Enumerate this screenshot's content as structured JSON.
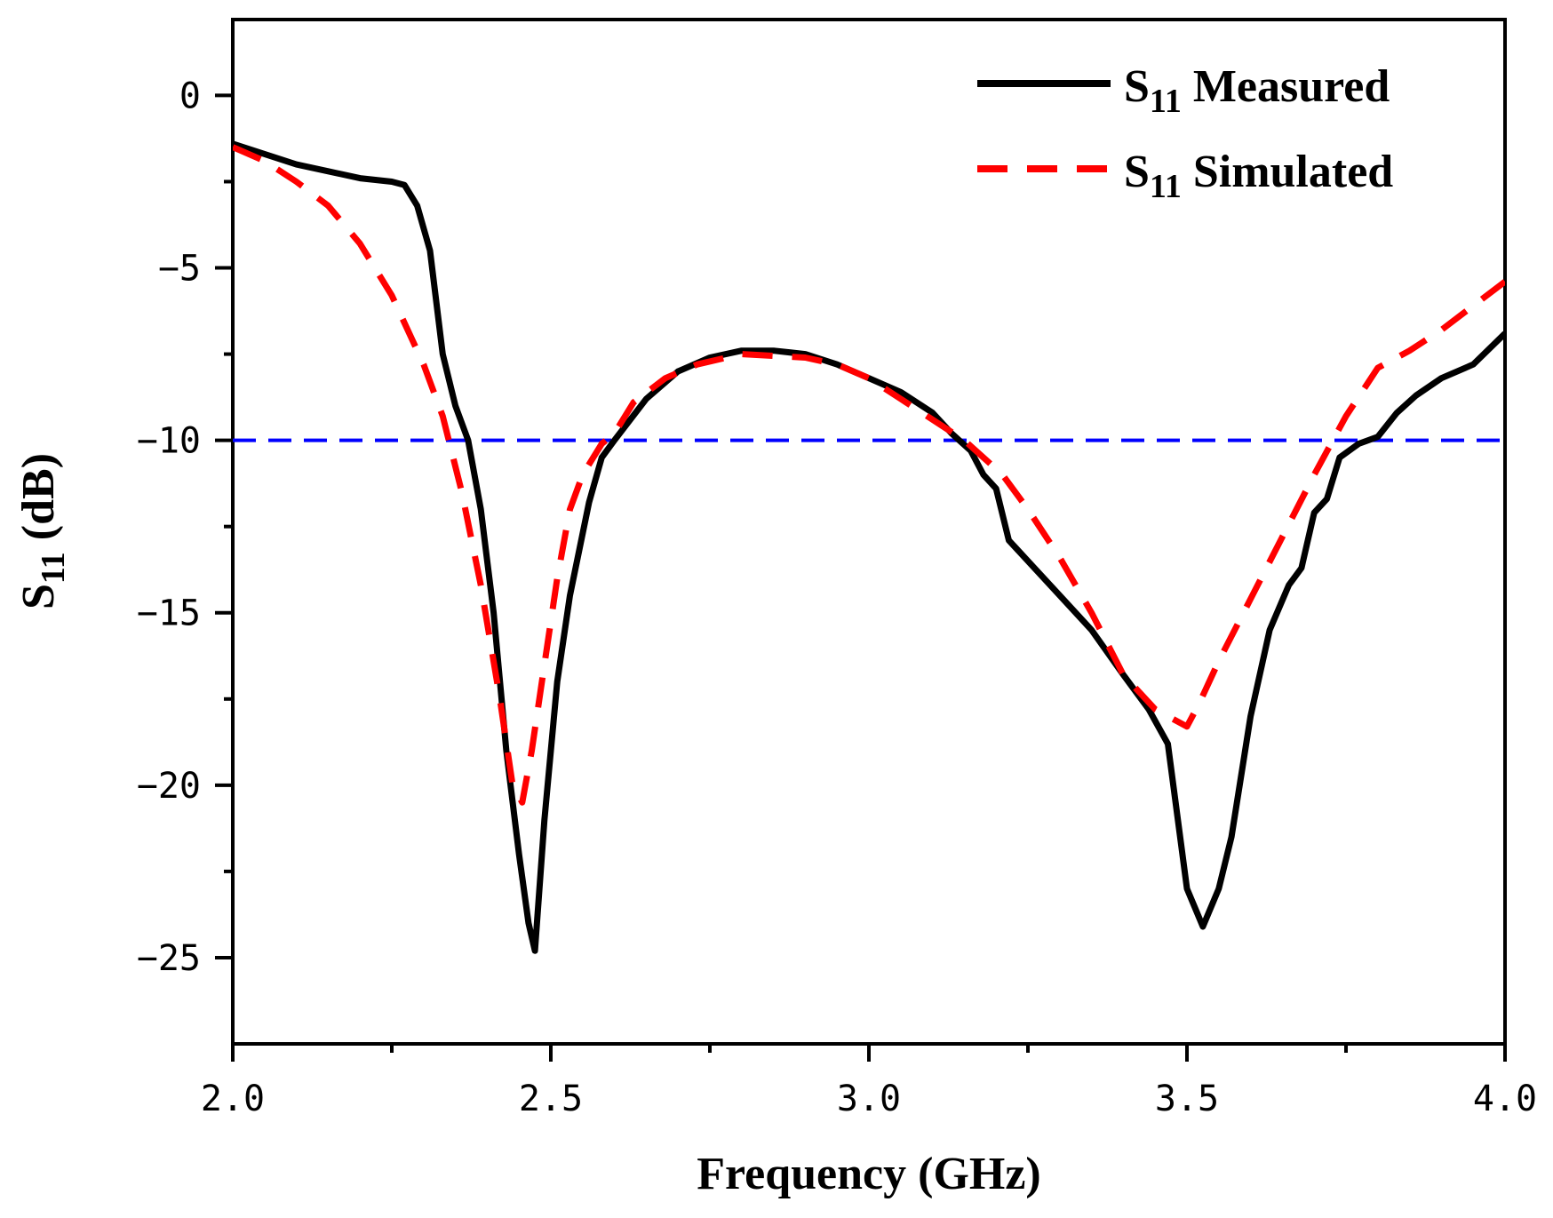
{
  "chart_data": {
    "type": "line",
    "xlabel": "Frequency (GHz)",
    "ylabel": {
      "main": "S",
      "sub": "11",
      "suffix": " (dB)"
    },
    "xlim": [
      2.0,
      4.0
    ],
    "ylim": [
      -27.5,
      2.2
    ],
    "x_ticks": [
      2.0,
      2.5,
      3.0,
      3.5,
      4.0
    ],
    "x_tick_labels": [
      "2.0",
      "2.5",
      "3.0",
      "3.5",
      "4.0"
    ],
    "y_ticks": [
      0,
      -5,
      -10,
      -15,
      -20,
      -25
    ],
    "y_tick_labels": [
      "0",
      "−5",
      "−10",
      "−15",
      "−20",
      "−25"
    ],
    "reference_line": {
      "y": -10,
      "color": "#0000ff",
      "style": "dashed"
    },
    "legend_position": "top-right",
    "series": [
      {
        "name": "S11 Measured",
        "legend": {
          "main": "S",
          "sub": "11",
          "suffix": " Measured"
        },
        "color": "#000000",
        "style": "solid",
        "x": [
          2.0,
          2.05,
          2.1,
          2.15,
          2.2,
          2.25,
          2.27,
          2.29,
          2.31,
          2.33,
          2.35,
          2.37,
          2.39,
          2.41,
          2.43,
          2.45,
          2.465,
          2.475,
          2.49,
          2.51,
          2.53,
          2.56,
          2.58,
          2.6,
          2.65,
          2.7,
          2.75,
          2.8,
          2.85,
          2.9,
          2.95,
          3.0,
          3.05,
          3.1,
          3.13,
          3.16,
          3.18,
          3.2,
          3.22,
          3.25,
          3.3,
          3.35,
          3.4,
          3.44,
          3.47,
          3.5,
          3.525,
          3.55,
          3.57,
          3.6,
          3.63,
          3.66,
          3.68,
          3.7,
          3.72,
          3.74,
          3.77,
          3.8,
          3.83,
          3.86,
          3.9,
          3.95,
          4.0
        ],
        "y": [
          -1.4,
          -1.7,
          -2.0,
          -2.2,
          -2.4,
          -2.5,
          -2.6,
          -3.2,
          -4.5,
          -7.5,
          -9.0,
          -10.0,
          -12.0,
          -15.0,
          -19.0,
          -22.0,
          -24.0,
          -24.8,
          -21.0,
          -17.0,
          -14.5,
          -11.8,
          -10.5,
          -10.0,
          -8.8,
          -8.0,
          -7.6,
          -7.4,
          -7.4,
          -7.5,
          -7.8,
          -8.2,
          -8.6,
          -9.2,
          -9.8,
          -10.3,
          -11.0,
          -11.4,
          -12.9,
          -13.5,
          -14.5,
          -15.5,
          -16.8,
          -17.8,
          -18.8,
          -23.0,
          -24.1,
          -23.0,
          -21.5,
          -18.0,
          -15.5,
          -14.2,
          -13.7,
          -12.1,
          -11.7,
          -10.5,
          -10.1,
          -9.9,
          -9.2,
          -8.7,
          -8.2,
          -7.8,
          -6.9
        ]
      },
      {
        "name": "S11 Simulated",
        "legend": {
          "main": "S",
          "sub": "11",
          "suffix": " Simulated"
        },
        "color": "#ff0000",
        "style": "dashed",
        "x": [
          2.0,
          2.05,
          2.1,
          2.15,
          2.2,
          2.25,
          2.3,
          2.33,
          2.36,
          2.39,
          2.42,
          2.44,
          2.455,
          2.47,
          2.49,
          2.51,
          2.53,
          2.55,
          2.58,
          2.6,
          2.63,
          2.68,
          2.73,
          2.8,
          2.9,
          2.95,
          3.0,
          3.05,
          3.1,
          3.15,
          3.18,
          3.21,
          3.25,
          3.3,
          3.35,
          3.4,
          3.45,
          3.5,
          3.52,
          3.55,
          3.6,
          3.65,
          3.7,
          3.75,
          3.8,
          3.85,
          3.9,
          3.95,
          4.0
        ],
        "y": [
          -1.5,
          -1.9,
          -2.5,
          -3.2,
          -4.3,
          -5.8,
          -7.8,
          -9.3,
          -11.5,
          -14.2,
          -17.5,
          -20.0,
          -20.5,
          -19.0,
          -16.5,
          -14.0,
          -12.0,
          -11.0,
          -10.1,
          -9.8,
          -8.9,
          -8.2,
          -7.8,
          -7.5,
          -7.6,
          -7.8,
          -8.2,
          -8.8,
          -9.4,
          -10.0,
          -10.5,
          -11.0,
          -12.0,
          -13.4,
          -15.0,
          -16.8,
          -17.8,
          -18.3,
          -17.6,
          -16.4,
          -14.6,
          -12.8,
          -11.0,
          -9.3,
          -7.9,
          -7.4,
          -6.8,
          -6.1,
          -5.4
        ]
      }
    ]
  }
}
